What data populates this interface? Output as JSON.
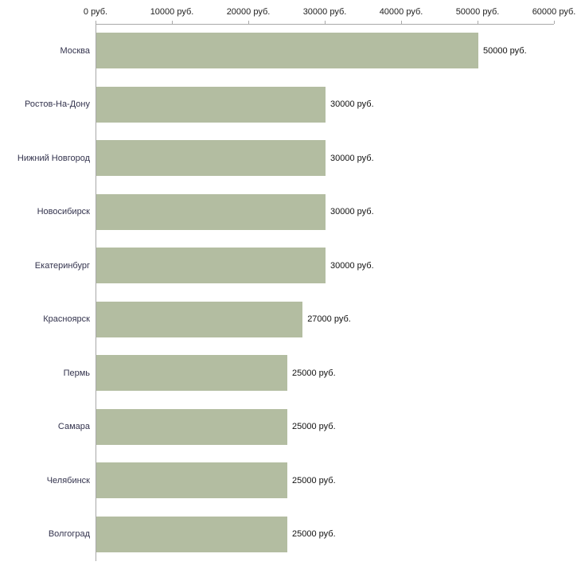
{
  "chart_data": {
    "type": "bar",
    "orientation": "horizontal",
    "categories": [
      "Москва",
      "Ростов-На-Дону",
      "Нижний Новгород",
      "Новосибирск",
      "Екатеринбург",
      "Красноярск",
      "Пермь",
      "Самара",
      "Челябинск",
      "Волгоград"
    ],
    "values": [
      50000,
      30000,
      30000,
      30000,
      30000,
      27000,
      25000,
      25000,
      25000,
      25000
    ],
    "value_labels": [
      "50000 руб.",
      "30000 руб.",
      "30000 руб.",
      "30000 руб.",
      "30000 руб.",
      "27000 руб.",
      "25000 руб.",
      "25000 руб.",
      "25000 руб.",
      "25000 руб."
    ],
    "x_ticks": [
      0,
      10000,
      20000,
      30000,
      40000,
      50000,
      60000
    ],
    "x_tick_labels": [
      "0 руб.",
      "10000 руб.",
      "20000 руб.",
      "30000 руб.",
      "40000 руб.",
      "50000 руб.",
      "60000 руб."
    ],
    "xlim": [
      0,
      60000
    ],
    "ylabel": "",
    "xlabel": "",
    "grid": false,
    "legend": false,
    "bar_color": "#b3bda1",
    "axis_color": "#a9a9a9",
    "category_label_color": "#33334d",
    "value_label_color": "#111111"
  }
}
